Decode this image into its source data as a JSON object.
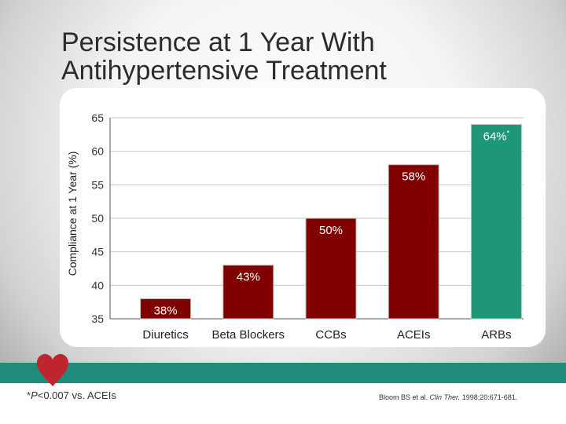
{
  "slide": {
    "title_line1": "Persistence at 1 Year With",
    "title_line2": "Antihypertensive Treatment",
    "footnote_prefix": "*",
    "footnote_p": "P",
    "footnote_rest": "<0.007 vs. ACEIs",
    "citation_authors": "Bloom BS et al. ",
    "citation_journal": "Clin Ther.",
    "citation_rest": " 1998;20:671-681."
  },
  "colors": {
    "bar_primary": "#800000",
    "bar_highlight": "#1e9678",
    "bar_label": "#ffffff",
    "teal_bar": "#1f8b7a",
    "heart": "#c0252f"
  },
  "chart_data": {
    "type": "bar",
    "title": "Persistence at 1 Year With Antihypertensive Treatment",
    "xlabel": "",
    "ylabel": "Compliance at 1 Year (%)",
    "ylim": [
      35,
      65
    ],
    "yticks": [
      35,
      40,
      45,
      50,
      55,
      60,
      65
    ],
    "grid": true,
    "categories": [
      "Diuretics",
      "Beta Blockers",
      "CCBs",
      "ACEIs",
      "ARBs"
    ],
    "values": [
      38,
      43,
      50,
      58,
      64
    ],
    "labels": [
      "38%",
      "43%",
      "50%",
      "58%",
      "64%*"
    ]
  }
}
